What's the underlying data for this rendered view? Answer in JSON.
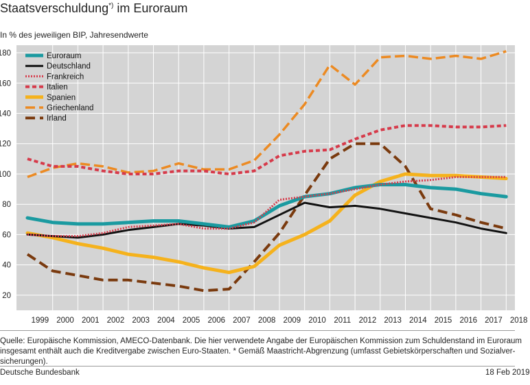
{
  "header": {
    "title": "Staatsverschuldung",
    "title_marker": "*)",
    "title_suffix": " im Euroraum",
    "subtitle": "In % des jeweiligen BIP, Jahresendwerte"
  },
  "notes": {
    "line1": "Quelle: Europäische Kommission, AMECO-Datenbank. Die hier verwendete Angabe der Europäischen Kommission zum Schuldenstand im Euroraum",
    "line2": "insgesamt enthält auch die Kreditvergabe zwischen Euro-Staaten. * Gemäß Maastricht-Abgrenzung (umfasst Gebietskörperschaften und Sozialver-",
    "line3": "sicherungen).",
    "publisher": "Deutsche Bundesbank",
    "date": "18 Feb 2019"
  },
  "chart_data": {
    "type": "line",
    "title": "Staatsverschuldung im Euroraum",
    "subtitle": "In % des jeweiligen BIP, Jahresendwerte",
    "x": [
      1999,
      2000,
      2001,
      2002,
      2003,
      2004,
      2005,
      2006,
      2007,
      2008,
      2009,
      2010,
      2011,
      2012,
      2013,
      2014,
      2015,
      2016,
      2017,
      2018
    ],
    "x_tick_labels": [
      "1999",
      "2000",
      "2001",
      "2002",
      "2003",
      "2004",
      "2005",
      "2006",
      "2007",
      "2008",
      "2009",
      "2010",
      "2011",
      "2012",
      "2013",
      "2014",
      "2015",
      "2016",
      "2017",
      "2018"
    ],
    "ylim": [
      10,
      185
    ],
    "y_ticks": [
      20,
      40,
      60,
      80,
      100,
      120,
      140,
      160,
      180
    ],
    "y_tick_labels": [
      "20",
      "40",
      "60",
      "80",
      "100",
      "120",
      "140",
      "160",
      "180"
    ],
    "grid": true,
    "legend_position": "top-left",
    "series": [
      {
        "name": "Euroraum",
        "color": "#1a9aa0",
        "style": "solid-thick",
        "values": [
          71,
          68,
          67,
          67,
          68,
          69,
          69,
          67,
          65,
          69,
          79,
          85,
          87,
          91,
          93,
          93,
          91,
          90,
          87,
          85
        ]
      },
      {
        "name": "Deutschland",
        "color": "#111111",
        "style": "solid",
        "values": [
          60,
          59,
          58,
          60,
          63,
          65,
          67,
          66,
          64,
          65,
          73,
          81,
          78,
          79,
          77,
          74,
          71,
          68,
          64,
          61
        ]
      },
      {
        "name": "Frankreich",
        "color": "#d63a4a",
        "style": "dotted",
        "values": [
          60,
          59,
          59,
          61,
          65,
          66,
          67,
          64,
          64,
          68,
          83,
          85,
          87,
          90,
          93,
          95,
          96,
          98,
          98,
          98
        ]
      },
      {
        "name": "Italien",
        "color": "#d63a4a",
        "style": "dashed",
        "values": [
          110,
          105,
          105,
          102,
          100,
          100,
          102,
          102,
          100,
          102,
          112,
          115,
          116,
          123,
          129,
          132,
          132,
          131,
          131,
          132
        ]
      },
      {
        "name": "Spanien",
        "color": "#f5b21c",
        "style": "solid-thick",
        "values": [
          61,
          58,
          54,
          51,
          47,
          45,
          42,
          38,
          35,
          39,
          53,
          60,
          69,
          86,
          95,
          100,
          99,
          99,
          98,
          97
        ]
      },
      {
        "name": "Griechenland",
        "color": "#ec8a22",
        "style": "long-dash",
        "values": [
          98,
          104,
          107,
          105,
          101,
          102,
          107,
          103,
          103,
          109,
          126,
          146,
          172,
          159,
          177,
          178,
          176,
          178,
          176,
          181
        ]
      },
      {
        "name": "Irland",
        "color": "#7a3a0e",
        "style": "long-dash-thick",
        "values": [
          47,
          36,
          33,
          30,
          30,
          28,
          26,
          23,
          24,
          42,
          61,
          86,
          110,
          120,
          120,
          105,
          77,
          73,
          68,
          64
        ]
      }
    ]
  }
}
